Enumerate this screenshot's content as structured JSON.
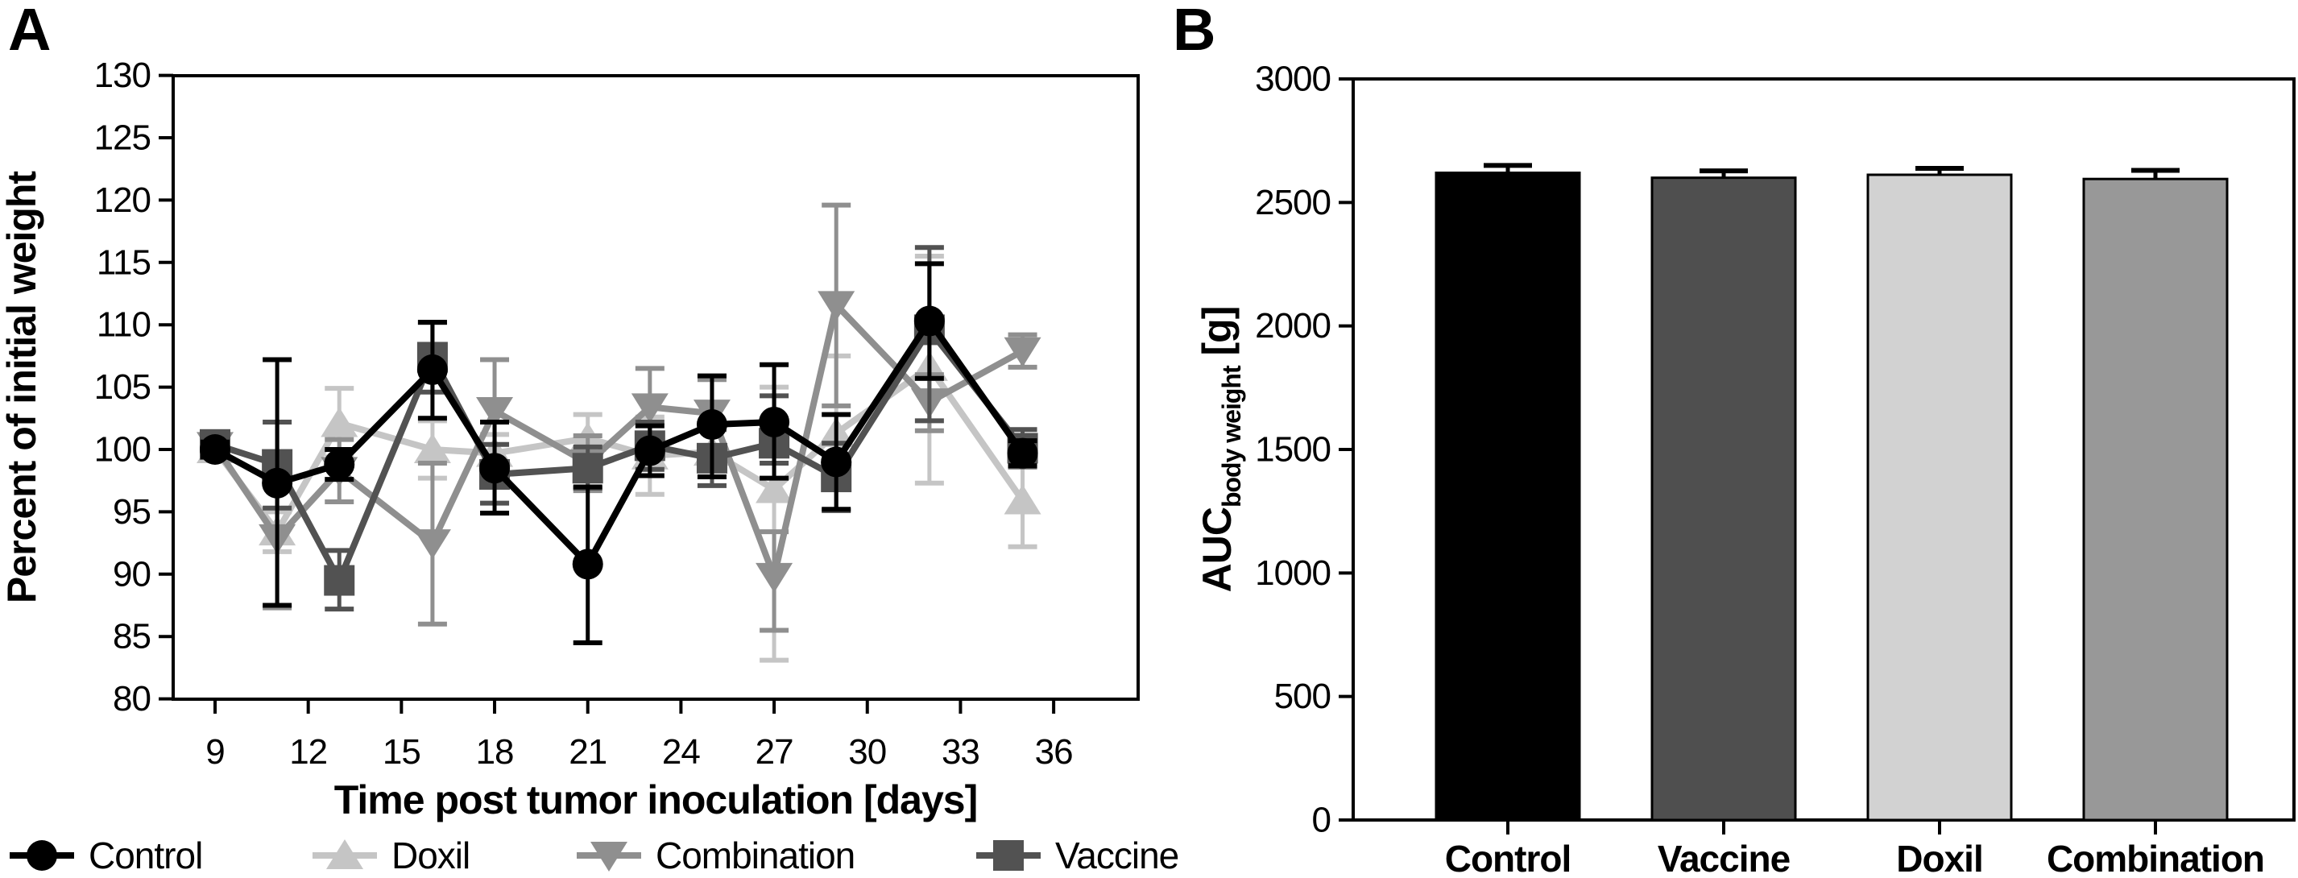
{
  "figure": {
    "panel_a_label": "A",
    "panel_b_label": "B",
    "background": "#ffffff",
    "axis_color": "#000000"
  },
  "chart_data": [
    {
      "id": "panel-a",
      "type": "line",
      "xlabel": "Time post tumor inoculation [days]",
      "ylabel": "Percent of initial weight",
      "xlim": [
        7.6,
        38.7
      ],
      "ylim": [
        80,
        130
      ],
      "xticks": [
        9,
        12,
        15,
        18,
        21,
        24,
        27,
        30,
        33,
        36
      ],
      "yticks": [
        130,
        125,
        120,
        115,
        110,
        105,
        100,
        95,
        90,
        85,
        80
      ],
      "grid": false,
      "legend_position": "bottom",
      "legend": [
        "Control",
        "Doxil",
        "Combination",
        "Vaccine"
      ],
      "x": [
        9,
        11,
        13,
        16,
        18,
        21,
        23,
        25,
        27,
        29,
        32,
        35
      ],
      "series": [
        {
          "name": "Doxil",
          "marker": "triangle-up",
          "color": "#c5c5c5",
          "values": [
            100.0,
            93.4,
            102.1,
            100.0,
            99.7,
            100.9,
            99.5,
            99.8,
            96.8,
            101.3,
            106.6,
            95.9
          ],
          "err_lo": [
            99.5,
            91.8,
            99.4,
            97.7,
            98.2,
            99.0,
            96.4,
            97.8,
            83.1,
            95.1,
            97.3,
            92.2
          ],
          "err_hi": [
            100.5,
            95.0,
            104.9,
            102.3,
            101.2,
            102.8,
            102.6,
            101.8,
            105.0,
            107.5,
            115.5,
            99.6
          ]
        },
        {
          "name": "Combination",
          "marker": "triangle-down",
          "color": "#8f8f8f",
          "values": [
            100.3,
            92.9,
            98.3,
            92.5,
            103.1,
            98.9,
            103.4,
            102.9,
            89.8,
            111.6,
            103.8,
            107.9
          ],
          "err_lo": [
            99.5,
            87.3,
            95.8,
            86.0,
            99.0,
            96.7,
            100.3,
            100.2,
            85.5,
            103.5,
            101.5,
            106.6
          ],
          "err_hi": [
            101.1,
            98.5,
            100.8,
            98.9,
            107.2,
            101.1,
            106.5,
            105.6,
            93.4,
            119.6,
            106.0,
            109.2
          ]
        },
        {
          "name": "Vaccine",
          "marker": "square",
          "color": "#525252",
          "values": [
            100.4,
            98.8,
            89.5,
            107.4,
            98.0,
            98.5,
            100.3,
            99.3,
            100.5,
            97.8,
            109.6,
            100.1
          ],
          "err_lo": [
            99.7,
            95.3,
            87.2,
            104.6,
            95.7,
            96.9,
            98.4,
            97.1,
            98.9,
            95.1,
            102.3,
            98.6
          ],
          "err_hi": [
            101.1,
            102.2,
            91.9,
            110.2,
            100.4,
            100.2,
            102.2,
            101.6,
            104.3,
            100.5,
            116.2,
            101.6
          ]
        },
        {
          "name": "Control",
          "marker": "circle",
          "color": "#000000",
          "values": [
            100.0,
            97.3,
            98.8,
            106.4,
            98.5,
            90.8,
            99.9,
            102.0,
            102.2,
            99.0,
            110.3,
            99.7
          ],
          "err_lo": [
            99.4,
            87.5,
            97.6,
            102.5,
            94.9,
            84.5,
            97.9,
            97.8,
            97.7,
            95.2,
            105.7,
            98.7
          ],
          "err_hi": [
            100.6,
            107.2,
            100.0,
            110.2,
            102.2,
            97.0,
            101.9,
            105.9,
            106.8,
            102.8,
            114.9,
            100.7
          ]
        }
      ]
    },
    {
      "id": "panel-b",
      "type": "bar",
      "ylabel_main": "AUC",
      "ylabel_sub": "body weight",
      "ylabel_unit": " [g]",
      "ylim": [
        0,
        3000
      ],
      "yticks": [
        3000,
        2500,
        2000,
        1500,
        1000,
        500,
        0
      ],
      "grid": false,
      "categories": [
        "Control",
        "Vaccine",
        "Doxil",
        "Combination"
      ],
      "values": [
        2620,
        2600,
        2612,
        2595
      ],
      "errors": [
        30,
        28,
        26,
        35
      ],
      "bar_colors": [
        "#000000",
        "#4f4f4f",
        "#d2d2d2",
        "#989898"
      ]
    }
  ]
}
